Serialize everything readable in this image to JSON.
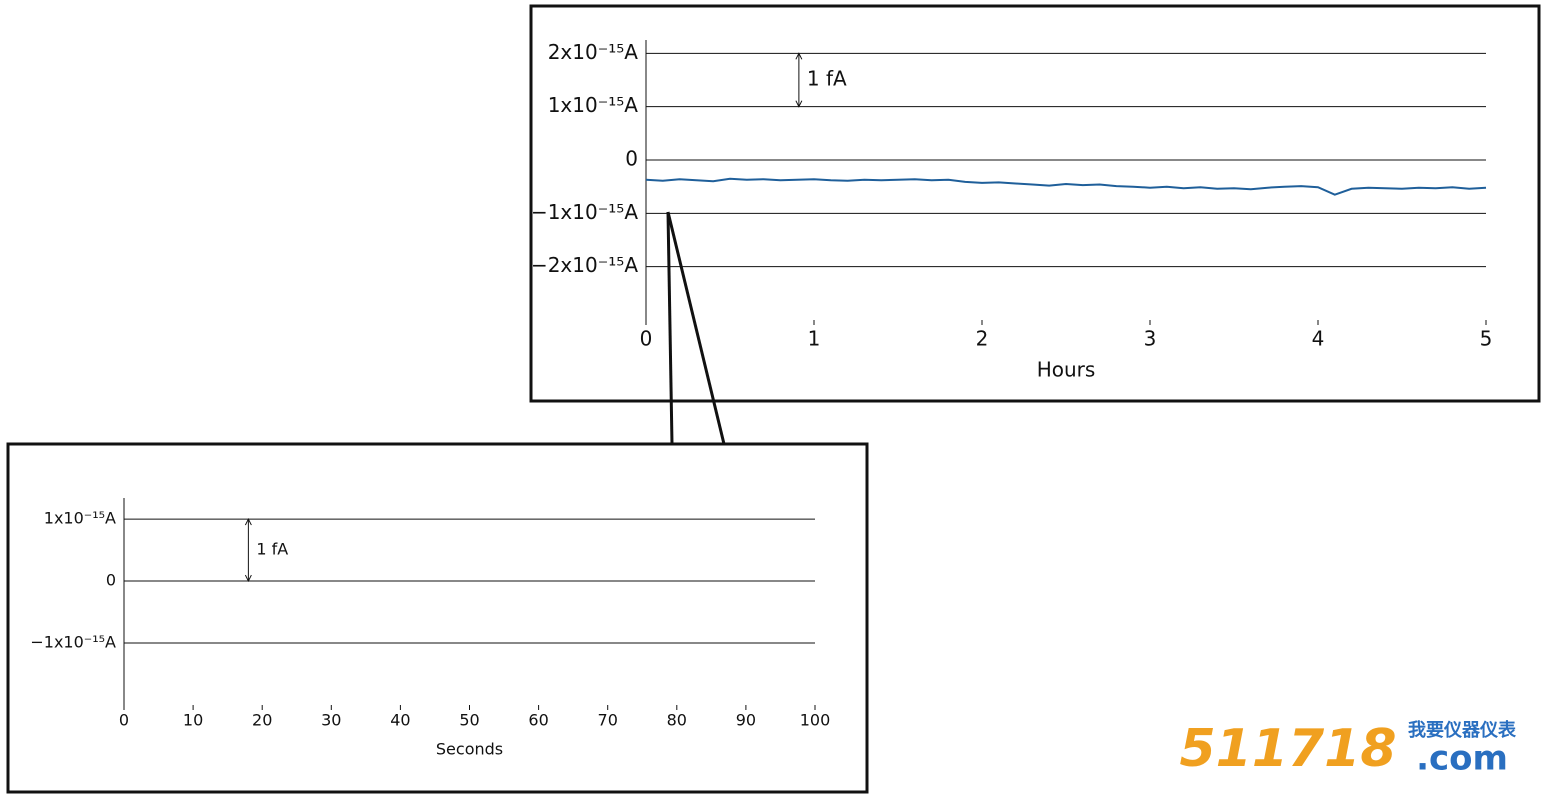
{
  "chart_data": [
    {
      "type": "line",
      "xlabel": "Hours",
      "annotation": "1 fA",
      "color": "#1f5f9a",
      "xlim": [
        0,
        5
      ],
      "xticks": [
        0,
        1,
        2,
        3,
        4,
        5
      ],
      "ylim": [
        -3e-15,
        2.25e-15
      ],
      "yticks": [
        {
          "value": 2e-15,
          "label": "2x10⁻¹⁵A"
        },
        {
          "value": 1e-15,
          "label": "1x10⁻¹⁵A"
        },
        0,
        {
          "value": -1e-15,
          "label": "−1x10⁻¹⁵A"
        },
        {
          "value": -2e-15,
          "label": "−2x10⁻¹⁵A"
        }
      ],
      "grid": true,
      "x": [
        0,
        0.1,
        0.2,
        0.3,
        0.4,
        0.5,
        0.6,
        0.7,
        0.8,
        0.9,
        1.0,
        1.1,
        1.2,
        1.3,
        1.4,
        1.5,
        1.6,
        1.7,
        1.8,
        1.9,
        2.0,
        2.1,
        2.2,
        2.3,
        2.4,
        2.5,
        2.6,
        2.7,
        2.8,
        2.9,
        3.0,
        3.1,
        3.2,
        3.3,
        3.4,
        3.5,
        3.6,
        3.7,
        3.8,
        3.9,
        4.0,
        4.1,
        4.2,
        4.3,
        4.4,
        4.5,
        4.6,
        4.7,
        4.8,
        4.9,
        5.0
      ],
      "values": [
        -3.7e-16,
        -3.9e-16,
        -3.6e-16,
        -3.8e-16,
        -4e-16,
        -3.5e-16,
        -3.7e-16,
        -3.6e-16,
        -3.8e-16,
        -3.7e-16,
        -3.6e-16,
        -3.8e-16,
        -3.9e-16,
        -3.7e-16,
        -3.8e-16,
        -3.7e-16,
        -3.6e-16,
        -3.8e-16,
        -3.7e-16,
        -4.1e-16,
        -4.3e-16,
        -4.2e-16,
        -4.4e-16,
        -4.6e-16,
        -4.8e-16,
        -4.5e-16,
        -4.7e-16,
        -4.6e-16,
        -4.9e-16,
        -5e-16,
        -5.2e-16,
        -5e-16,
        -5.3e-16,
        -5.1e-16,
        -5.4e-16,
        -5.3e-16,
        -5.5e-16,
        -5.2e-16,
        -5e-16,
        -4.9e-16,
        -5.1e-16,
        -6.5e-16,
        -5.4e-16,
        -5.2e-16,
        -5.3e-16,
        -5.4e-16,
        -5.2e-16,
        -5.3e-16,
        -5.1e-16,
        -5.4e-16,
        -5.2e-16
      ]
    },
    {
      "type": "line",
      "xlabel": "Seconds",
      "annotation": "1 fA",
      "xlim": [
        0,
        100
      ],
      "xticks": [
        0,
        10,
        20,
        30,
        40,
        50,
        60,
        70,
        80,
        90,
        100
      ],
      "ylim": [
        -2e-15,
        1.34e-15
      ],
      "yticks": [
        {
          "value": 1e-15,
          "label": "1x10⁻¹⁵A"
        },
        0,
        {
          "value": -1e-15,
          "label": "−1x10⁻¹⁵A"
        }
      ],
      "grid": true
    }
  ],
  "watermark": {
    "number": "511718",
    "name": "我要仪器仪表",
    "domain": ".com"
  }
}
